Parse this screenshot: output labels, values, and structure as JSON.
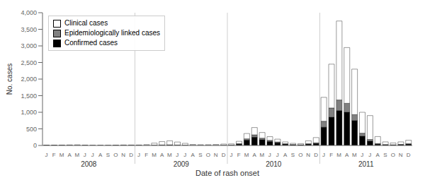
{
  "chart_data": {
    "type": "bar",
    "stacked": true,
    "xlabel": "Date of rash onset",
    "ylabel": "No. cases",
    "categories": [
      "J",
      "F",
      "M",
      "A",
      "M",
      "J",
      "J",
      "A",
      "S",
      "O",
      "N",
      "D",
      "J",
      "F",
      "M",
      "A",
      "M",
      "J",
      "J",
      "A",
      "S",
      "O",
      "N",
      "D",
      "J",
      "F",
      "M",
      "A",
      "M",
      "J",
      "J",
      "A",
      "S",
      "O",
      "N",
      "D",
      "J",
      "F",
      "M",
      "A",
      "M",
      "J",
      "J",
      "A",
      "S",
      "O",
      "N",
      "D"
    ],
    "annotations": [
      "2008",
      "2009",
      "2010",
      "2011"
    ],
    "series": [
      {
        "name": "Confirmed cases",
        "color": "#000000",
        "values": [
          2,
          2,
          3,
          3,
          3,
          2,
          1,
          1,
          1,
          2,
          3,
          3,
          3,
          3,
          5,
          8,
          10,
          8,
          5,
          3,
          3,
          3,
          3,
          5,
          8,
          40,
          160,
          250,
          170,
          120,
          80,
          40,
          20,
          15,
          40,
          60,
          550,
          850,
          1050,
          1000,
          750,
          280,
          130,
          40,
          20,
          15,
          25,
          40
        ]
      },
      {
        "name": "Epidemiologically linked cases",
        "color": "#808080",
        "values": [
          1,
          1,
          1,
          1,
          1,
          1,
          0,
          0,
          0,
          1,
          1,
          1,
          1,
          2,
          5,
          8,
          10,
          6,
          4,
          2,
          2,
          2,
          2,
          3,
          5,
          15,
          40,
          70,
          50,
          35,
          25,
          12,
          8,
          6,
          12,
          18,
          180,
          280,
          320,
          270,
          180,
          90,
          50,
          18,
          8,
          6,
          8,
          12
        ]
      },
      {
        "name": "Clinical cases",
        "color": "#ffffff",
        "values": [
          2,
          3,
          8,
          12,
          15,
          8,
          4,
          3,
          3,
          5,
          10,
          10,
          10,
          20,
          60,
          100,
          120,
          90,
          55,
          25,
          18,
          18,
          25,
          35,
          35,
          70,
          160,
          220,
          170,
          110,
          85,
          55,
          35,
          35,
          90,
          160,
          720,
          1320,
          2380,
          1680,
          1370,
          630,
          720,
          210,
          80,
          55,
          75,
          105
        ]
      }
    ],
    "ylim": [
      0,
      4000
    ],
    "yticks": [
      0,
      500,
      {
        "value": 1000,
        "label": "1,000"
      },
      {
        "value": 1500,
        "label": "1,500"
      },
      {
        "value": 2000,
        "label": "2,000"
      },
      {
        "value": 2500,
        "label": "2,500"
      },
      {
        "value": 3000,
        "label": "3,000"
      },
      {
        "value": 3500,
        "label": "3,500"
      },
      {
        "value": 4000,
        "label": "4,000"
      }
    ],
    "legend": "upper left",
    "grid": false
  }
}
